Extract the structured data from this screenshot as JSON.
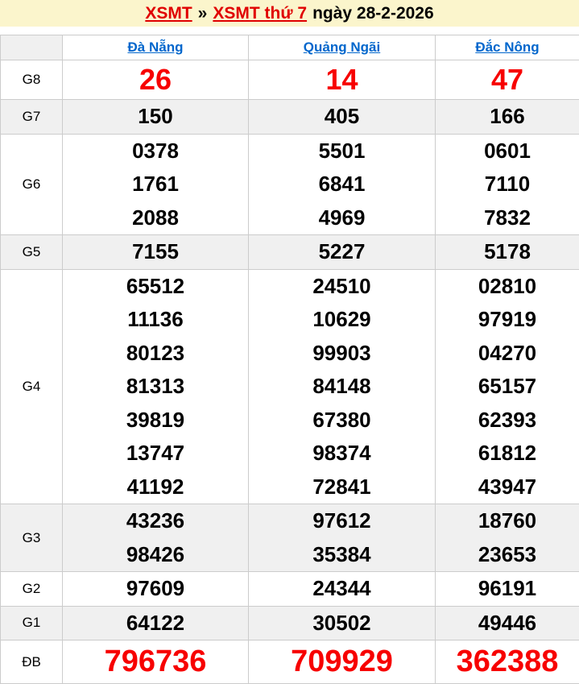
{
  "title": {
    "link1": "XSMT",
    "separator": "»",
    "link2": "XSMT thứ 7",
    "date_text": "ngày 28-2-2026"
  },
  "table": {
    "columns": [
      "Đà Nẵng",
      "Quảng Ngãi",
      "Đắc Nông"
    ],
    "rows": [
      {
        "id": "g8",
        "label": "G8",
        "style": "g8",
        "cells": [
          [
            "26"
          ],
          [
            "14"
          ],
          [
            "47"
          ]
        ]
      },
      {
        "id": "g7",
        "label": "G7",
        "style": "",
        "cells": [
          [
            "150"
          ],
          [
            "405"
          ],
          [
            "166"
          ]
        ]
      },
      {
        "id": "g6",
        "label": "G6",
        "style": "",
        "cells": [
          [
            "0378",
            "1761",
            "2088"
          ],
          [
            "5501",
            "6841",
            "4969"
          ],
          [
            "0601",
            "7110",
            "7832"
          ]
        ]
      },
      {
        "id": "g5",
        "label": "G5",
        "style": "",
        "cells": [
          [
            "7155"
          ],
          [
            "5227"
          ],
          [
            "5178"
          ]
        ]
      },
      {
        "id": "g4",
        "label": "G4",
        "style": "",
        "cells": [
          [
            "65512",
            "11136",
            "80123",
            "81313",
            "39819",
            "13747",
            "41192"
          ],
          [
            "24510",
            "10629",
            "99903",
            "84148",
            "67380",
            "98374",
            "72841"
          ],
          [
            "02810",
            "97919",
            "04270",
            "65157",
            "62393",
            "61812",
            "43947"
          ]
        ]
      },
      {
        "id": "g3",
        "label": "G3",
        "style": "",
        "cells": [
          [
            "43236",
            "98426"
          ],
          [
            "97612",
            "35384"
          ],
          [
            "18760",
            "23653"
          ]
        ]
      },
      {
        "id": "g2",
        "label": "G2",
        "style": "",
        "cells": [
          [
            "97609"
          ],
          [
            "24344"
          ],
          [
            "96191"
          ]
        ]
      },
      {
        "id": "g1",
        "label": "G1",
        "style": "",
        "cells": [
          [
            "64122"
          ],
          [
            "30502"
          ],
          [
            "49446"
          ]
        ]
      },
      {
        "id": "db",
        "label": "ĐB",
        "style": "db",
        "cells": [
          [
            "796736"
          ],
          [
            "709929"
          ],
          [
            "362388"
          ]
        ]
      }
    ]
  },
  "colors": {
    "title_bg": "#fbf5cc",
    "link_red": "#e00000",
    "value_red": "#f70000",
    "link_blue": "#0066cc",
    "row_shade": "#f0f0f0",
    "border": "#cccccc"
  }
}
